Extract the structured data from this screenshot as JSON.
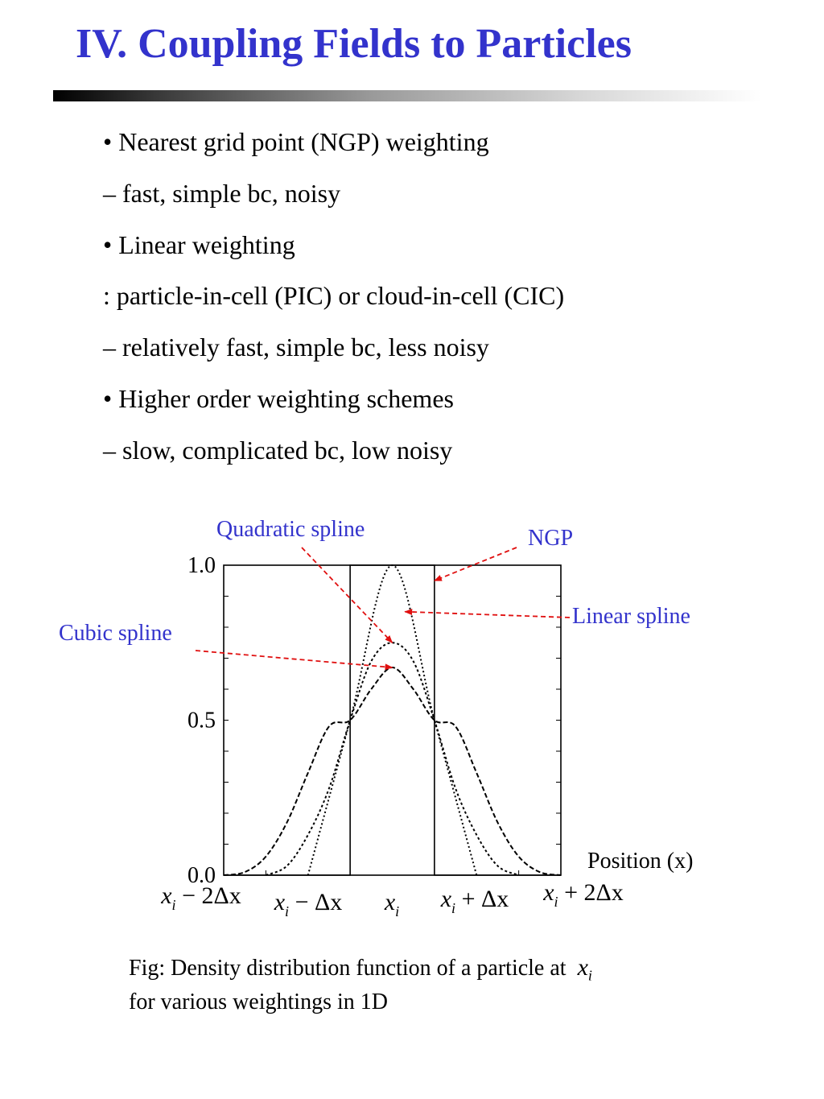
{
  "slide": {
    "title": "IV. Coupling Fields to Particles",
    "bullets": [
      "• Nearest grid point (NGP) weighting",
      "– fast, simple bc, noisy",
      "• Linear weighting",
      ": particle-in-cell (PIC) or cloud-in-cell (CIC)",
      "– relatively fast, simple bc, less noisy",
      "• Higher order weighting schemes",
      "– slow, complicated bc, low noisy"
    ],
    "caption_line1": "Fig: Density distribution function of a particle at",
    "caption_var": "x",
    "caption_sub": "i",
    "caption_line2": "for various weightings in 1D"
  },
  "colors": {
    "title": "#3333cc",
    "label": "#3333cc",
    "arrow": "#e01010"
  },
  "chart_data": {
    "type": "line",
    "xlabel": "Position (x)",
    "ylabel": "",
    "xlim": [
      -2,
      2
    ],
    "ylim": [
      0,
      1
    ],
    "yticks": [
      0.0,
      0.5,
      1.0
    ],
    "ytick_labels": [
      "0.0",
      "0.5",
      "1.0"
    ],
    "xtick_labels": [
      {
        "value": -2,
        "base": "x",
        "sub": "i",
        "rest": " − 2Δx"
      },
      {
        "value": -1,
        "base": "x",
        "sub": "i",
        "rest": " − Δx"
      },
      {
        "value": 0,
        "base": "x",
        "sub": "i",
        "rest": ""
      },
      {
        "value": 1,
        "base": "x",
        "sub": "i",
        "rest": " + Δx"
      },
      {
        "value": 2,
        "base": "x",
        "sub": "i",
        "rest": " + 2Δx"
      }
    ],
    "grid": false,
    "series": [
      {
        "name": "NGP",
        "x": [
          -2,
          -0.5,
          -0.5,
          0.5,
          0.5,
          2
        ],
        "y": [
          0,
          0,
          1,
          1,
          0,
          0
        ]
      },
      {
        "name": "Linear spline",
        "x": [
          -1,
          -0.5,
          0,
          0.5,
          1
        ],
        "y": [
          0,
          0.5,
          1,
          0.5,
          0
        ]
      },
      {
        "name": "Quadratic spline",
        "x": [
          -1.5,
          -1.25,
          -1,
          -0.75,
          -0.5,
          -0.25,
          0,
          0.25,
          0.5,
          0.75,
          1,
          1.25,
          1.5
        ],
        "y": [
          0,
          0.03,
          0.13,
          0.28,
          0.5,
          0.69,
          0.75,
          0.69,
          0.5,
          0.28,
          0.13,
          0.03,
          0
        ]
      },
      {
        "name": "Cubic spline",
        "x": [
          -2,
          -1.75,
          -1.5,
          -1.25,
          -1,
          -0.75,
          -0.5,
          -0.25,
          0,
          0.25,
          0.5,
          0.75,
          1,
          1.25,
          1.5,
          1.75,
          2
        ],
        "y": [
          0,
          0.01,
          0.06,
          0.17,
          0.33,
          0.48,
          0.5,
          0.6,
          0.67,
          0.6,
          0.5,
          0.48,
          0.33,
          0.17,
          0.06,
          0.01,
          0
        ]
      }
    ],
    "annotations": [
      {
        "text": "Quadratic spline",
        "target_series": "Quadratic spline",
        "target_x": 0,
        "target_y": 0.75
      },
      {
        "text": "NGP",
        "target_series": "NGP",
        "target_x": 0.5,
        "target_y": 0.95
      },
      {
        "text": "Linear spline",
        "target_series": "Linear spline",
        "target_x": 0.15,
        "target_y": 0.85
      },
      {
        "text": "Cubic spline",
        "target_series": "Cubic spline",
        "target_x": 0,
        "target_y": 0.67
      }
    ]
  }
}
